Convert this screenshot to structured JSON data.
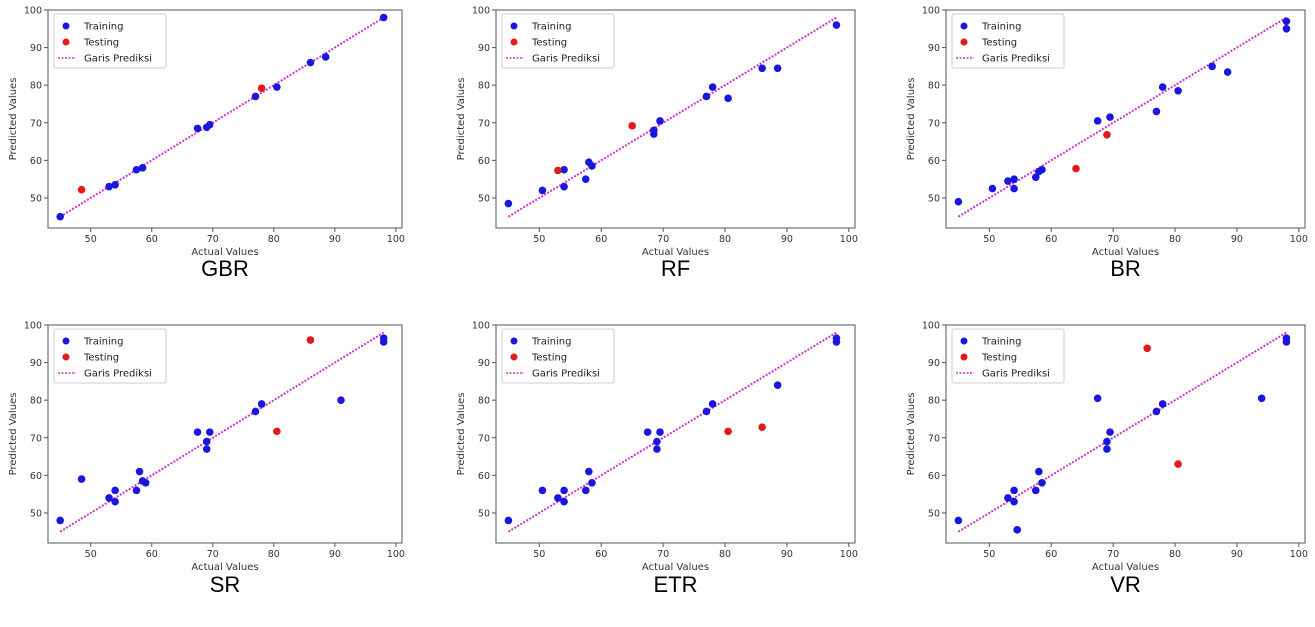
{
  "colors": {
    "training": "#1a16e0",
    "testing": "#e3191c",
    "line": "#cc33cc"
  },
  "chart_data": [
    {
      "type": "scatter",
      "caption": "GBR",
      "xlabel": "Actual Values",
      "ylabel": "Predicted Values",
      "xlim": [
        43,
        101
      ],
      "ylim": [
        42,
        100
      ],
      "xticks": [
        50,
        60,
        70,
        80,
        90,
        100
      ],
      "yticks": [
        50,
        60,
        70,
        80,
        90,
        100
      ],
      "legend": [
        "Training",
        "Testing",
        "Garis Prediksi"
      ],
      "legend_position": "top-left",
      "series": [
        {
          "name": "Training",
          "points": [
            [
              45,
              45
            ],
            [
              53,
              53
            ],
            [
              54,
              53.5
            ],
            [
              57.5,
              57.5
            ],
            [
              58.5,
              58
            ],
            [
              67.5,
              68.5
            ],
            [
              69,
              68.8
            ],
            [
              69.5,
              69.5
            ],
            [
              77,
              77
            ],
            [
              80.5,
              79.5
            ],
            [
              86,
              86
            ],
            [
              88.5,
              87.5
            ],
            [
              98,
              98
            ]
          ]
        },
        {
          "name": "Testing",
          "points": [
            [
              48.5,
              52.2
            ],
            [
              78,
              79.2
            ]
          ]
        }
      ],
      "prediction_line": [
        [
          45,
          45
        ],
        [
          98,
          98
        ]
      ]
    },
    {
      "type": "scatter",
      "caption": "RF",
      "xlabel": "Actual Values",
      "ylabel": "Predicted Values",
      "xlim": [
        43,
        101
      ],
      "ylim": [
        42,
        100
      ],
      "xticks": [
        50,
        60,
        70,
        80,
        90,
        100
      ],
      "yticks": [
        50,
        60,
        70,
        80,
        90,
        100
      ],
      "legend": [
        "Training",
        "Testing",
        "Garis Prediksi"
      ],
      "legend_position": "top-left",
      "series": [
        {
          "name": "Training",
          "points": [
            [
              45,
              48.5
            ],
            [
              50.5,
              52
            ],
            [
              54,
              53
            ],
            [
              54,
              57.5
            ],
            [
              57.5,
              55
            ],
            [
              58,
              59.5
            ],
            [
              58.5,
              58.5
            ],
            [
              68.5,
              67
            ],
            [
              68.5,
              68
            ],
            [
              69.5,
              70.5
            ],
            [
              77,
              77
            ],
            [
              78,
              79.5
            ],
            [
              80.5,
              76.5
            ],
            [
              86,
              84.5
            ],
            [
              88.5,
              84.5
            ],
            [
              98,
              96
            ]
          ]
        },
        {
          "name": "Testing",
          "points": [
            [
              53,
              57.3
            ],
            [
              65,
              69.2
            ]
          ]
        }
      ],
      "prediction_line": [
        [
          45,
          45
        ],
        [
          98,
          98
        ]
      ]
    },
    {
      "type": "scatter",
      "caption": "BR",
      "xlabel": "Actual Values",
      "ylabel": "Predicted Values",
      "xlim": [
        43,
        101
      ],
      "ylim": [
        42,
        100
      ],
      "xticks": [
        50,
        60,
        70,
        80,
        90,
        100
      ],
      "yticks": [
        50,
        60,
        70,
        80,
        90,
        100
      ],
      "legend": [
        "Training",
        "Testing",
        "Garis Prediksi"
      ],
      "legend_position": "top-left",
      "series": [
        {
          "name": "Training",
          "points": [
            [
              45,
              49
            ],
            [
              50.5,
              52.5
            ],
            [
              53,
              54.5
            ],
            [
              54,
              52.5
            ],
            [
              54,
              55
            ],
            [
              57.5,
              55.5
            ],
            [
              58,
              57
            ],
            [
              58.5,
              57.5
            ],
            [
              67.5,
              70.5
            ],
            [
              69.5,
              71.5
            ],
            [
              77,
              73
            ],
            [
              78,
              79.5
            ],
            [
              80.5,
              78.5
            ],
            [
              86,
              85
            ],
            [
              88.5,
              83.5
            ],
            [
              98,
              95
            ],
            [
              98,
              97
            ]
          ]
        },
        {
          "name": "Testing",
          "points": [
            [
              64,
              57.8
            ],
            [
              69,
              66.8
            ]
          ]
        }
      ],
      "prediction_line": [
        [
          45,
          45
        ],
        [
          98,
          98
        ]
      ]
    },
    {
      "type": "scatter",
      "caption": "SR",
      "xlabel": "Actual Values",
      "ylabel": "Predicted Values",
      "xlim": [
        43,
        101
      ],
      "ylim": [
        42,
        100
      ],
      "xticks": [
        50,
        60,
        70,
        80,
        90,
        100
      ],
      "yticks": [
        50,
        60,
        70,
        80,
        90,
        100
      ],
      "legend": [
        "Training",
        "Testing",
        "Garis Prediksi"
      ],
      "legend_position": "top-left",
      "series": [
        {
          "name": "Training",
          "points": [
            [
              45,
              48
            ],
            [
              48.5,
              59
            ],
            [
              53,
              54
            ],
            [
              54,
              53
            ],
            [
              54,
              56
            ],
            [
              57.5,
              56
            ],
            [
              58,
              61
            ],
            [
              58.5,
              58.5
            ],
            [
              59,
              58
            ],
            [
              67.5,
              71.5
            ],
            [
              69,
              67
            ],
            [
              69,
              69
            ],
            [
              69.5,
              71.5
            ],
            [
              77,
              77
            ],
            [
              78,
              79
            ],
            [
              91,
              80
            ],
            [
              98,
              95.5
            ],
            [
              98,
              96.5
            ]
          ]
        },
        {
          "name": "Testing",
          "points": [
            [
              80.5,
              71.7
            ],
            [
              86,
              96
            ]
          ]
        }
      ],
      "prediction_line": [
        [
          45,
          45
        ],
        [
          98,
          98
        ]
      ]
    },
    {
      "type": "scatter",
      "caption": "ETR",
      "xlabel": "Actual Values",
      "ylabel": "Predicted Values",
      "xlim": [
        43,
        101
      ],
      "ylim": [
        42,
        100
      ],
      "xticks": [
        50,
        60,
        70,
        80,
        90,
        100
      ],
      "yticks": [
        50,
        60,
        70,
        80,
        90,
        100
      ],
      "legend": [
        "Training",
        "Testing",
        "Garis Prediksi"
      ],
      "legend_position": "top-left",
      "series": [
        {
          "name": "Training",
          "points": [
            [
              45,
              48
            ],
            [
              50.5,
              56
            ],
            [
              53,
              54
            ],
            [
              54,
              53
            ],
            [
              54,
              56
            ],
            [
              57.5,
              56
            ],
            [
              58,
              61
            ],
            [
              58.5,
              58
            ],
            [
              67.5,
              71.5
            ],
            [
              69,
              67
            ],
            [
              69,
              69
            ],
            [
              69.5,
              71.5
            ],
            [
              77,
              77
            ],
            [
              78,
              79
            ],
            [
              88.5,
              84
            ],
            [
              98,
              95.5
            ],
            [
              98,
              96.5
            ]
          ]
        },
        {
          "name": "Testing",
          "points": [
            [
              80.5,
              71.7
            ],
            [
              86,
              72.8
            ]
          ]
        }
      ],
      "prediction_line": [
        [
          45,
          45
        ],
        [
          98,
          98
        ]
      ]
    },
    {
      "type": "scatter",
      "caption": "VR",
      "xlabel": "Actual Values",
      "ylabel": "Predicted Values",
      "xlim": [
        43,
        101
      ],
      "ylim": [
        42,
        100
      ],
      "xticks": [
        50,
        60,
        70,
        80,
        90,
        100
      ],
      "yticks": [
        50,
        60,
        70,
        80,
        90,
        100
      ],
      "legend": [
        "Training",
        "Testing",
        "Garis Prediksi"
      ],
      "legend_position": "top-left",
      "series": [
        {
          "name": "Training",
          "points": [
            [
              45,
              48
            ],
            [
              53,
              54
            ],
            [
              54,
              53
            ],
            [
              54,
              56
            ],
            [
              54.5,
              45.5
            ],
            [
              57.5,
              56
            ],
            [
              58,
              61
            ],
            [
              58.5,
              58
            ],
            [
              67.5,
              80.5
            ],
            [
              69,
              67
            ],
            [
              69,
              69
            ],
            [
              69.5,
              71.5
            ],
            [
              77,
              77
            ],
            [
              78,
              79
            ],
            [
              94,
              80.5
            ],
            [
              98,
              95.5
            ],
            [
              98,
              96.5
            ]
          ]
        },
        {
          "name": "Testing",
          "points": [
            [
              75.5,
              93.8
            ],
            [
              80.5,
              63
            ]
          ]
        }
      ],
      "prediction_line": [
        [
          45,
          45
        ],
        [
          98,
          98
        ]
      ]
    }
  ]
}
